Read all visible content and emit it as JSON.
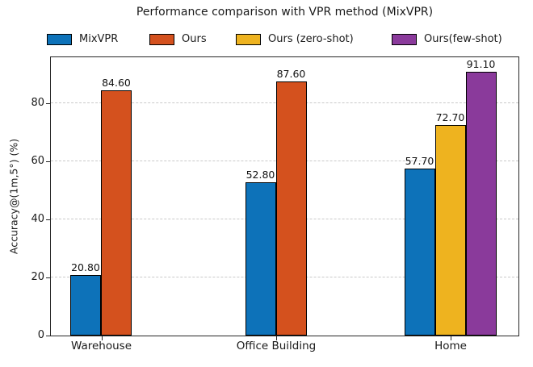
{
  "colors": {
    "bar_edge": "#000000",
    "axis_frame": "#262626",
    "gridline": "#c9c9c9",
    "text": "#1a1a1a"
  },
  "chart_data": {
    "type": "bar",
    "title": "Performance comparison with VPR method (MixVPR)",
    "xlabel": "",
    "ylabel": "Accuracy@(1m,5°) (%)",
    "ylim": [
      0,
      95.7
    ],
    "yticks": [
      "0",
      "20",
      "40",
      "60",
      "80"
    ],
    "grid": "horizontal-dashed",
    "legend_position": "top",
    "legend": [
      {
        "label": "MixVPR",
        "color": "#0D72B9"
      },
      {
        "label": "Ours",
        "color": "#D4511E"
      },
      {
        "label": "Ours (zero-shot)",
        "color": "#EEB31F"
      },
      {
        "label": "Ours(few-shot)",
        "color": "#8A3A9B"
      }
    ],
    "categories": [
      "Warehouse",
      "Office Building",
      "Home"
    ],
    "groups": [
      {
        "category": "Warehouse",
        "bars": [
          {
            "series": 0,
            "value": 20.8,
            "label": "20.80"
          },
          {
            "series": 1,
            "value": 84.6,
            "label": "84.60"
          }
        ]
      },
      {
        "category": "Office Building",
        "bars": [
          {
            "series": 0,
            "value": 52.8,
            "label": "52.80"
          },
          {
            "series": 1,
            "value": 87.6,
            "label": "87.60"
          }
        ]
      },
      {
        "category": "Home",
        "bars": [
          {
            "series": 0,
            "value": 57.7,
            "label": "57.70"
          },
          {
            "series": 2,
            "value": 72.7,
            "label": "72.70"
          },
          {
            "series": 3,
            "value": 91.1,
            "label": "91.10"
          }
        ]
      }
    ]
  }
}
